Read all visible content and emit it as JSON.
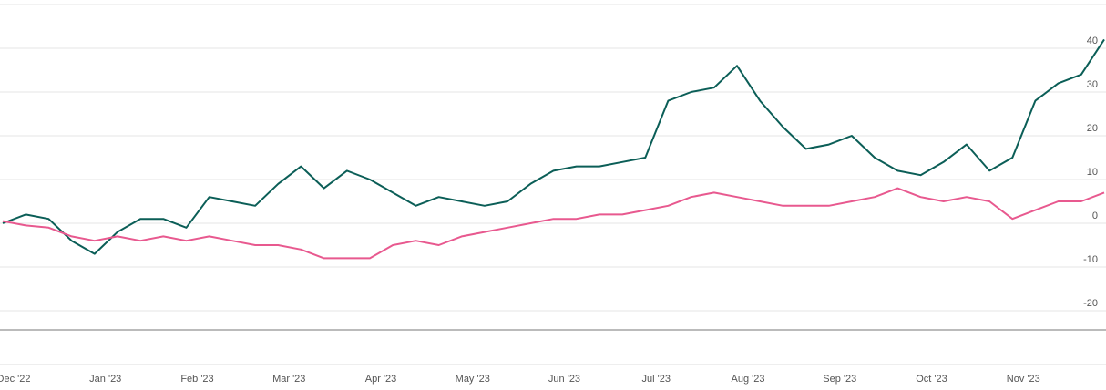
{
  "chart_data": {
    "type": "line",
    "categories": [
      "Dec '22",
      null,
      null,
      null,
      "Jan '23",
      null,
      null,
      null,
      "Feb '23",
      null,
      null,
      null,
      "Mar '23",
      null,
      null,
      null,
      "Apr '23",
      null,
      null,
      null,
      "May '23",
      null,
      null,
      null,
      "Jun '23",
      null,
      null,
      null,
      "Jul '23",
      null,
      null,
      null,
      "Aug '23",
      null,
      null,
      null,
      "Sep '23",
      null,
      null,
      null,
      "Oct '23",
      null,
      null,
      null,
      "Nov '23",
      null,
      null,
      null,
      null
    ],
    "series": [
      {
        "color": "#0b5e57",
        "values": [
          0,
          2,
          1,
          -4,
          -7,
          -2,
          1,
          1,
          -1,
          6,
          5,
          4,
          9,
          13,
          8,
          12,
          10,
          7,
          4,
          6,
          5,
          4,
          5,
          9,
          12,
          13,
          13,
          14,
          15,
          28,
          30,
          31,
          36,
          28,
          22,
          17,
          18,
          20,
          15,
          12,
          11,
          14,
          18,
          12,
          15,
          28,
          32,
          34,
          42
        ]
      },
      {
        "color": "#e8598f",
        "values": [
          0.5,
          -0.5,
          -1,
          -3,
          -4,
          -3,
          -4,
          -3,
          -4,
          -3,
          -4,
          -5,
          -5,
          -6,
          -8,
          -8,
          -8,
          -5,
          -4,
          -5,
          -3,
          -2,
          -1,
          0,
          1,
          1,
          2,
          2,
          3,
          4,
          6,
          7,
          6,
          5,
          4,
          4,
          4,
          5,
          6,
          8,
          6,
          5,
          6,
          5,
          1,
          3,
          5,
          5,
          7
        ]
      }
    ],
    "ylim": [
      -25,
      50
    ],
    "yticks": [
      -20,
      -10,
      0,
      10,
      20,
      30,
      40
    ],
    "grid": true
  }
}
